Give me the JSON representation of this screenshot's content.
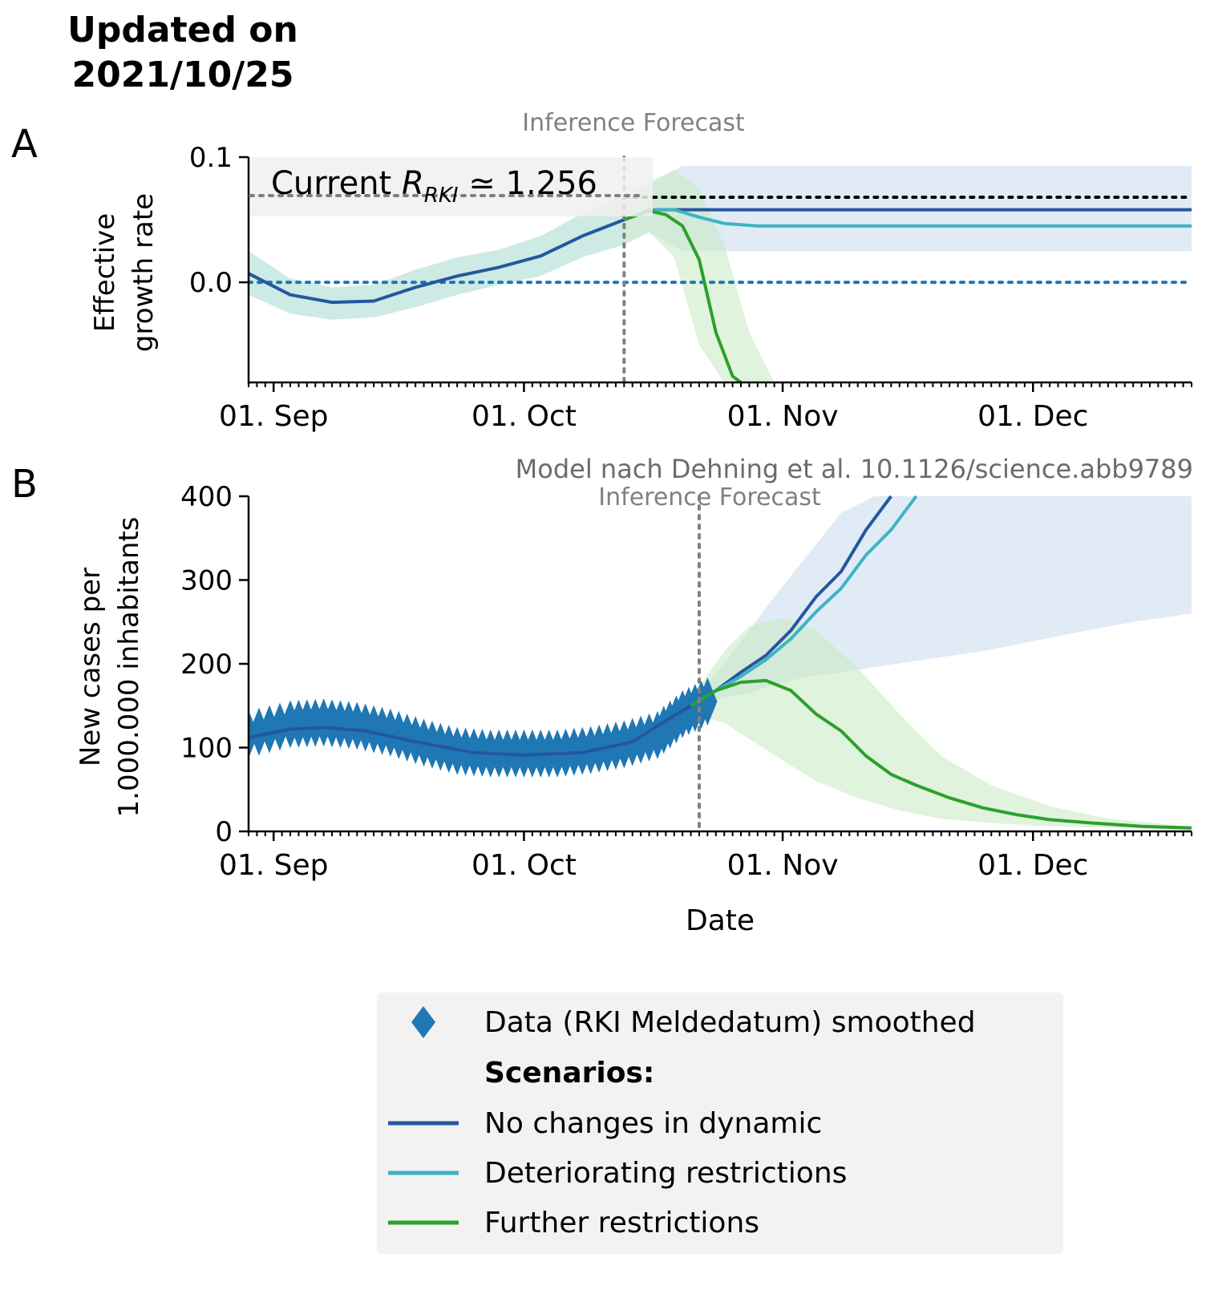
{
  "header": {
    "line1": "Updated on",
    "line2": "2021/10/25"
  },
  "panel_a": {
    "letter": "A",
    "ylabel_line1": "Effective",
    "ylabel_line2": "growth rate",
    "phase_label": "Inference Forecast",
    "current_prefix": "Current ",
    "current_symbol": "R",
    "current_subscript": "RKI",
    "current_value": "≃ 1.256"
  },
  "panel_b": {
    "letter": "B",
    "ylabel_line1": "New cases per",
    "ylabel_line2": "1.000.000 inhabitants",
    "source_note": "Model nach Dehning et al. 10.1126/science.abb9789",
    "phase_label": "Inference Forecast",
    "xlabel": "Date"
  },
  "legend": {
    "data_label": "Data (RKI Meldedatum) smoothed",
    "scenarios_title": "Scenarios:",
    "items": [
      {
        "label": "No changes in dynamic",
        "color": "#2457a0"
      },
      {
        "label": "Deteriorating restrictions",
        "color": "#3fb3c4"
      },
      {
        "label": "Further restrictions",
        "color": "#2ca02c"
      }
    ]
  },
  "colors": {
    "data": "#1f77b4",
    "no_change": "#2457a0",
    "deteriorating": "#3fb3c4",
    "further": "#2ca02c",
    "band_blue": "#c6dbef",
    "band_green": "#c7e9c0",
    "axis": "#000000",
    "vline": "#808080",
    "ref_zero": "#1f77b4",
    "ref_current": "#000000"
  },
  "chart_data": [
    {
      "type": "line",
      "panel": "A",
      "x_axis": "date",
      "xlim": [
        "2021-08-29",
        "2021-12-20"
      ],
      "ylim": [
        -0.08,
        0.1
      ],
      "yticks": [
        0.0,
        0.1
      ],
      "ytick_labels": [
        "0.0",
        "0.1"
      ],
      "xticks": [
        "2021-09-01",
        "2021-10-01",
        "2021-11-01",
        "2021-12-01"
      ],
      "xtick_labels": [
        "01. Sep",
        "01. Oct",
        "01. Nov",
        "01. Dec"
      ],
      "forecast_start": "2021-10-13",
      "reference_lines": [
        {
          "y": 0.0,
          "style": "dotted",
          "color": "#1f77b4"
        },
        {
          "y": 0.068,
          "style": "dotted",
          "color": "#000000"
        }
      ],
      "series": [
        {
          "name": "No changes in dynamic",
          "x": [
            "2021-08-29",
            "2021-09-03",
            "2021-09-08",
            "2021-09-13",
            "2021-09-18",
            "2021-09-23",
            "2021-09-28",
            "2021-10-03",
            "2021-10-08",
            "2021-10-13",
            "2021-10-16",
            "2021-10-20",
            "2021-11-01",
            "2021-12-20"
          ],
          "y": [
            0.007,
            -0.01,
            -0.016,
            -0.015,
            -0.004,
            0.005,
            0.012,
            0.021,
            0.037,
            0.05,
            0.058,
            0.058,
            0.058,
            0.058
          ],
          "band_lower": [
            -0.01,
            -0.025,
            -0.03,
            -0.028,
            -0.02,
            -0.01,
            -0.002,
            0.005,
            0.02,
            0.03,
            0.04,
            0.025,
            0.025,
            0.025
          ],
          "band_upper": [
            0.025,
            0.003,
            -0.004,
            -0.002,
            0.01,
            0.02,
            0.026,
            0.037,
            0.055,
            0.07,
            0.078,
            0.093,
            0.093,
            0.093
          ]
        },
        {
          "name": "Deteriorating restrictions",
          "x": [
            "2021-10-13",
            "2021-10-16",
            "2021-10-19",
            "2021-10-22",
            "2021-10-25",
            "2021-10-29",
            "2021-11-05",
            "2021-12-20"
          ],
          "y": [
            0.05,
            0.058,
            0.058,
            0.052,
            0.047,
            0.045,
            0.045,
            0.045
          ]
        },
        {
          "name": "Further restrictions",
          "x": [
            "2021-10-13",
            "2021-10-16",
            "2021-10-18",
            "2021-10-20",
            "2021-10-22",
            "2021-10-24",
            "2021-10-26",
            "2021-10-27"
          ],
          "y": [
            0.05,
            0.057,
            0.054,
            0.045,
            0.018,
            -0.04,
            -0.075,
            -0.08
          ],
          "band_x": [
            "2021-10-13",
            "2021-10-16",
            "2021-10-19",
            "2021-10-22",
            "2021-10-25",
            "2021-10-28",
            "2021-10-31"
          ],
          "band_lower": [
            0.03,
            0.04,
            0.02,
            -0.05,
            -0.08,
            -0.08,
            -0.08
          ],
          "band_upper": [
            0.07,
            0.08,
            0.09,
            0.075,
            0.03,
            -0.04,
            -0.08
          ]
        }
      ]
    },
    {
      "type": "line",
      "panel": "B",
      "x_axis": "date",
      "xlim": [
        "2021-08-29",
        "2021-12-20"
      ],
      "ylim": [
        0,
        400
      ],
      "yticks": [
        0,
        100,
        200,
        300,
        400
      ],
      "ytick_labels": [
        "0",
        "100",
        "200",
        "300",
        "400"
      ],
      "xticks": [
        "2021-09-01",
        "2021-10-01",
        "2021-11-01",
        "2021-12-01"
      ],
      "xtick_labels": [
        "01. Sep",
        "01. Oct",
        "01. Nov",
        "01. Dec"
      ],
      "forecast_start": "2021-10-22",
      "data": {
        "name": "Data (RKI Meldedatum) smoothed",
        "x": [
          "2021-08-29",
          "2021-09-03",
          "2021-09-07",
          "2021-09-11",
          "2021-09-15",
          "2021-09-19",
          "2021-09-23",
          "2021-09-27",
          "2021-10-01",
          "2021-10-05",
          "2021-10-09",
          "2021-10-13",
          "2021-10-17",
          "2021-10-20",
          "2021-10-23"
        ],
        "y": [
          116,
          128,
          130,
          126,
          118,
          106,
          96,
          93,
          93,
          93,
          97,
          104,
          115,
          140,
          155
        ]
      },
      "series": [
        {
          "name": "No changes in dynamic",
          "x": [
            "2021-08-29",
            "2021-09-03",
            "2021-09-07",
            "2021-09-12",
            "2021-09-18",
            "2021-09-25",
            "2021-10-01",
            "2021-10-08",
            "2021-10-14",
            "2021-10-18",
            "2021-10-21",
            "2021-10-24",
            "2021-10-27",
            "2021-10-30",
            "2021-11-02",
            "2021-11-05",
            "2021-11-08",
            "2021-11-11",
            "2021-11-14"
          ],
          "y": [
            112,
            122,
            124,
            120,
            107,
            94,
            91,
            94,
            107,
            132,
            150,
            168,
            190,
            210,
            240,
            280,
            310,
            360,
            400
          ],
          "band_x": [
            "2021-10-22",
            "2021-10-25",
            "2021-10-28",
            "2021-10-31",
            "2021-11-04",
            "2021-11-08",
            "2021-11-12",
            "2021-11-18",
            "2021-11-25",
            "2021-12-05",
            "2021-12-13",
            "2021-12-20"
          ],
          "band_lower": [
            150,
            160,
            165,
            175,
            185,
            190,
            196,
            205,
            215,
            235,
            250,
            260
          ],
          "band_upper": [
            165,
            200,
            240,
            280,
            330,
            380,
            400,
            400,
            400,
            400,
            400,
            400
          ]
        },
        {
          "name": "Deteriorating restrictions",
          "x": [
            "2021-10-21",
            "2021-10-24",
            "2021-10-27",
            "2021-10-30",
            "2021-11-02",
            "2021-11-05",
            "2021-11-08",
            "2021-11-11",
            "2021-11-14",
            "2021-11-17"
          ],
          "y": [
            150,
            168,
            185,
            205,
            230,
            262,
            290,
            330,
            360,
            400
          ]
        },
        {
          "name": "Further restrictions",
          "x": [
            "2021-10-21",
            "2021-10-24",
            "2021-10-27",
            "2021-10-30",
            "2021-11-02",
            "2021-11-05",
            "2021-11-08",
            "2021-11-11",
            "2021-11-14",
            "2021-11-17",
            "2021-11-21",
            "2021-11-25",
            "2021-11-29",
            "2021-12-03",
            "2021-12-08",
            "2021-12-14",
            "2021-12-20"
          ],
          "y": [
            150,
            168,
            178,
            180,
            168,
            140,
            120,
            90,
            68,
            55,
            40,
            28,
            20,
            14,
            10,
            6,
            4
          ],
          "band_x": [
            "2021-10-21",
            "2021-10-25",
            "2021-10-28",
            "2021-11-01",
            "2021-11-05",
            "2021-11-10",
            "2021-11-15",
            "2021-11-20",
            "2021-11-26",
            "2021-12-03",
            "2021-12-10",
            "2021-12-20"
          ],
          "band_lower": [
            140,
            130,
            110,
            85,
            60,
            40,
            25,
            15,
            10,
            6,
            4,
            2
          ],
          "band_upper": [
            160,
            215,
            245,
            255,
            240,
            195,
            140,
            90,
            55,
            30,
            15,
            6
          ]
        }
      ]
    }
  ]
}
